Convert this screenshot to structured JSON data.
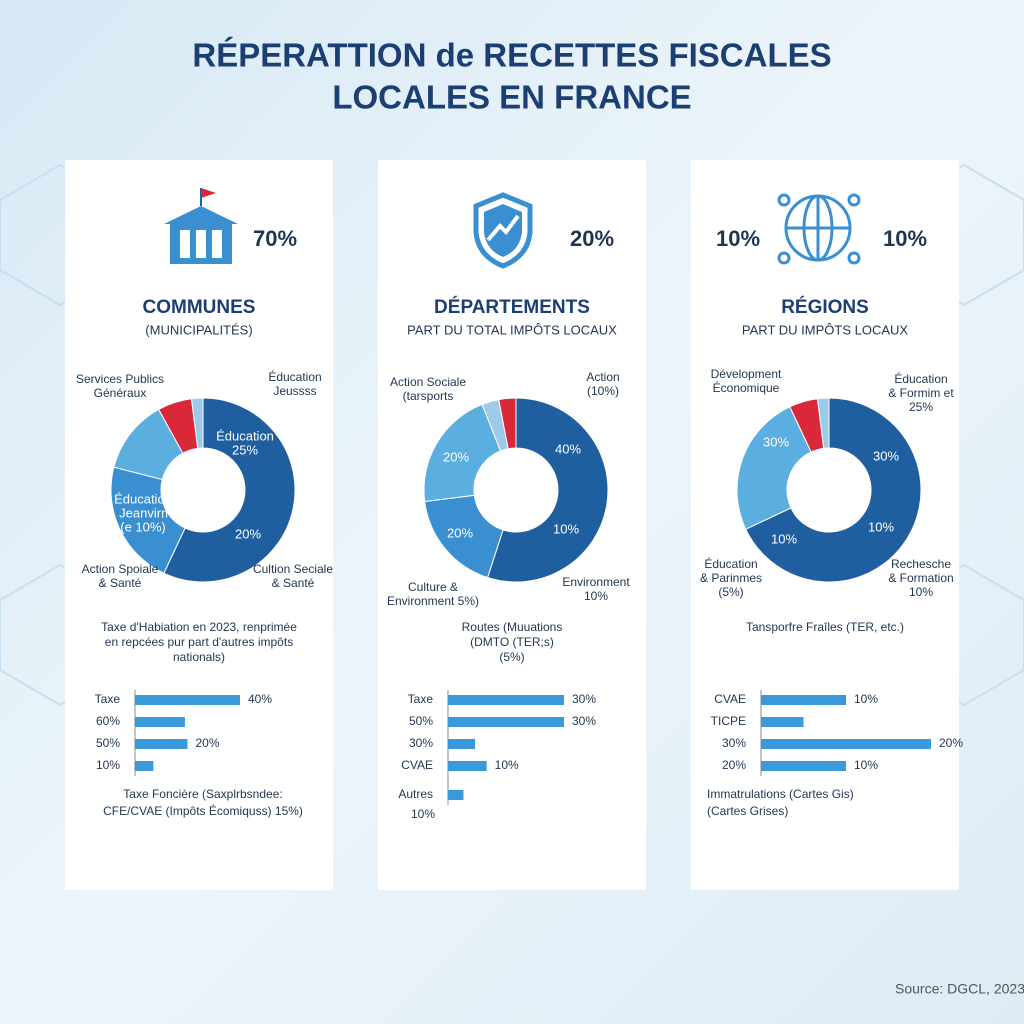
{
  "title": [
    "RÉPERATTION de RECETTES FISCALES",
    "LOCALES EN FRANCE"
  ],
  "source": "Source: DGCL, 2023",
  "panels": [
    {
      "percents": [
        "70%"
      ],
      "heading": "COMMUNES",
      "subheading": "(MUNICIPALITÉS)",
      "note": [
        "Taxe d'Habiation en 2023, renprimée",
        "en repcées pur part d'autres impôts",
        "nationals)"
      ],
      "footer": [
        "Taxe Foncière (Saxplrbsndee:",
        "CFE/CVAE (Impôts Écomiquss) 15%)"
      ]
    },
    {
      "percents": [
        "20%"
      ],
      "heading": "DÉPARTEMENTS",
      "subheading": "PART DU TOTAL IMPÔTS LOCAUX",
      "note": [
        "Routes (Muuations",
        "(DMTO (TER;s)",
        "(5%)"
      ],
      "footer": [
        "10%"
      ]
    },
    {
      "percents": [
        "10%",
        "10%"
      ],
      "heading": "RÉGIONS",
      "subheading": "PART DU IMPÔTS LOCAUX",
      "note": [
        "Tansporfre Fraîles (TER, etc.)"
      ],
      "footer": [
        "Immatrulations (Cartes Gis)",
        "(Cartes Grises)"
      ]
    }
  ],
  "chart_data": [
    {
      "type": "pie",
      "values": [
        57,
        22,
        13,
        6,
        2
      ],
      "colors": [
        "#1f5fa0",
        "#3a8fd0",
        "#5aaee0",
        "#d8283a",
        "#9ccbe9"
      ],
      "annotations": [
        [
          "Services Publics",
          "Généraux"
        ],
        [
          "Éducation",
          "Jeussss"
        ],
        [
          "Éducation",
          "25%"
        ],
        [
          "20%"
        ],
        [
          "Éducation",
          "& Jeanvirme",
          "(e 10%)"
        ],
        [
          "Action Spoiale",
          "& Santé"
        ],
        [
          "Cultion Seciale",
          "& Santé"
        ]
      ]
    },
    {
      "type": "bar",
      "categories": [
        "Taxe",
        "60%",
        "50%",
        "10%"
      ],
      "values": [
        40,
        19,
        20,
        7
      ],
      "value_labels": [
        "40%",
        null,
        "20%",
        null
      ],
      "color": "#3a9ad9",
      "xlim": [
        0,
        40
      ]
    },
    {
      "type": "pie",
      "values": [
        55,
        18,
        21,
        3,
        3
      ],
      "colors": [
        "#1f5fa0",
        "#3a8fd0",
        "#5aaee0",
        "#9ccbe9",
        "#d8283a"
      ],
      "annotations": [
        [
          "Action Sociale",
          "(tarsports"
        ],
        [
          "Action",
          "(10%)"
        ],
        [
          "40%"
        ],
        [
          "10%"
        ],
        [
          "20%"
        ],
        [
          "20%"
        ],
        [
          "Culture &",
          "Environment 5%)"
        ],
        [
          "Environment",
          "10%"
        ]
      ]
    },
    {
      "type": "bar",
      "categories": [
        "Taxe",
        "50%",
        "30%",
        "CVAE",
        "Autres"
      ],
      "values": [
        30,
        30,
        7,
        10,
        4
      ],
      "value_labels": [
        "30%",
        "30%",
        null,
        "10%",
        null
      ],
      "color": "#3a9ad9",
      "xlim": [
        0,
        30
      ]
    },
    {
      "type": "pie",
      "values": [
        68,
        25,
        5,
        2
      ],
      "colors": [
        "#1f5fa0",
        "#5aaee0",
        "#d8283a",
        "#9ccbe9"
      ],
      "annotations": [
        [
          "Dévelopment",
          "Économique"
        ],
        [
          "Éducation",
          "& Formim et",
          "25%"
        ],
        [
          "30%"
        ],
        [
          "30%"
        ],
        [
          "10%"
        ],
        [
          "10%"
        ],
        [
          "Éducation",
          "& Parinmes",
          "(5%)"
        ],
        [
          "Rechesche",
          "& Formation",
          "10%"
        ]
      ]
    },
    {
      "type": "bar",
      "categories": [
        "CVAE",
        "TICPE",
        "30%",
        "20%"
      ],
      "values": [
        10,
        5,
        20,
        10
      ],
      "value_labels": [
        "10%",
        null,
        "20%",
        "10%"
      ],
      "color": "#3a9ad9",
      "xlim": [
        0,
        20
      ]
    }
  ]
}
